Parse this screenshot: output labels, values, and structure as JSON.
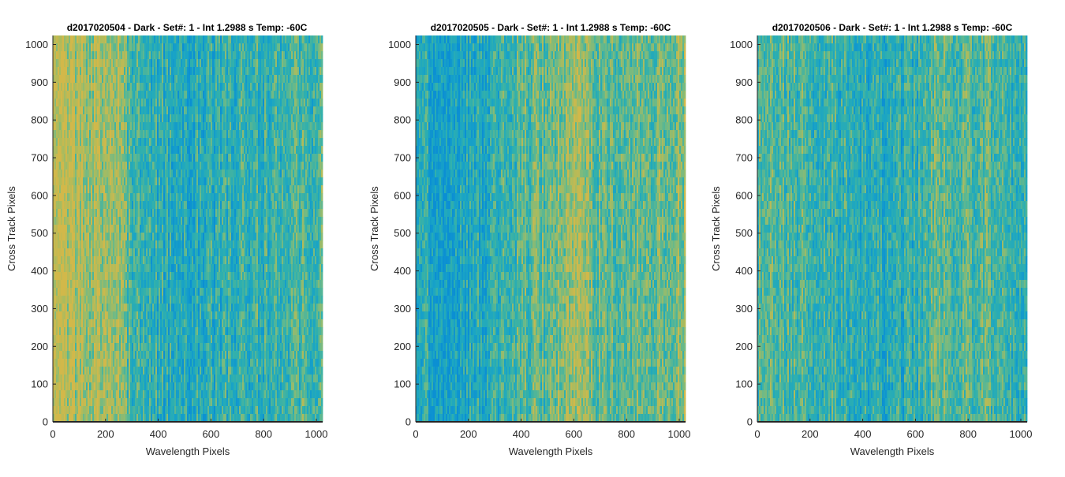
{
  "chart_data": [
    {
      "type": "heatmap",
      "title": "d2017020504 - Dark - Set#: 1 - Int 1.2988 s Temp: -60C",
      "xlabel": "Wavelength Pixels",
      "ylabel": "Cross Track Pixels",
      "xlim": [
        0,
        1024
      ],
      "ylim": [
        0,
        1024
      ],
      "xticks": [
        "0",
        "200",
        "400",
        "600",
        "800",
        "1000"
      ],
      "yticks": [
        "0",
        "100",
        "200",
        "300",
        "400",
        "500",
        "600",
        "700",
        "800",
        "900",
        "1000"
      ],
      "profile_x": [
        0,
        50,
        100,
        150,
        200,
        250,
        280,
        320,
        400,
        500,
        600,
        700,
        800,
        900,
        1024
      ],
      "profile_level": [
        0.82,
        0.85,
        0.83,
        0.78,
        0.8,
        0.72,
        0.5,
        0.38,
        0.32,
        0.25,
        0.3,
        0.35,
        0.4,
        0.42,
        0.5
      ],
      "colors": [
        "#0b8fd3",
        "#19a4c6",
        "#31b0ac",
        "#6fba86",
        "#aebb5c",
        "#d2b84a"
      ]
    },
    {
      "type": "heatmap",
      "title": "d2017020505 - Dark - Set#: 1 - Int 1.2988 s Temp: -60C",
      "xlabel": "Wavelength Pixels",
      "ylabel": "Cross Track Pixels",
      "xlim": [
        0,
        1024
      ],
      "ylim": [
        0,
        1024
      ],
      "xticks": [
        "0",
        "200",
        "400",
        "600",
        "800",
        "1000"
      ],
      "yticks": [
        "0",
        "100",
        "200",
        "300",
        "400",
        "500",
        "600",
        "700",
        "800",
        "900",
        "1000"
      ],
      "profile_x": [
        0,
        50,
        100,
        150,
        200,
        300,
        400,
        500,
        600,
        650,
        700,
        800,
        900,
        1024
      ],
      "profile_level": [
        0.35,
        0.25,
        0.15,
        0.18,
        0.25,
        0.35,
        0.5,
        0.55,
        0.75,
        0.7,
        0.55,
        0.55,
        0.6,
        0.7
      ],
      "colors": [
        "#0b8fd3",
        "#19a4c6",
        "#31b0ac",
        "#6fba86",
        "#aebb5c",
        "#d2b84a"
      ]
    },
    {
      "type": "heatmap",
      "title": "d2017020506 - Dark - Set#: 1 - Int 1.2988 s Temp: -60C",
      "xlabel": "Wavelength Pixels",
      "ylabel": "Cross Track Pixels",
      "xlim": [
        0,
        1024
      ],
      "ylim": [
        0,
        1024
      ],
      "xticks": [
        "0",
        "200",
        "400",
        "600",
        "800",
        "1000"
      ],
      "yticks": [
        "0",
        "100",
        "200",
        "300",
        "400",
        "500",
        "600",
        "700",
        "800",
        "900",
        "1000"
      ],
      "profile_x": [
        0,
        100,
        200,
        300,
        400,
        500,
        600,
        700,
        800,
        850,
        900,
        1024
      ],
      "profile_level": [
        0.5,
        0.5,
        0.45,
        0.4,
        0.35,
        0.32,
        0.38,
        0.55,
        0.5,
        0.55,
        0.45,
        0.4
      ],
      "colors": [
        "#0b8fd3",
        "#19a4c6",
        "#31b0ac",
        "#6fba86",
        "#aebb5c",
        "#d2b84a"
      ]
    }
  ]
}
